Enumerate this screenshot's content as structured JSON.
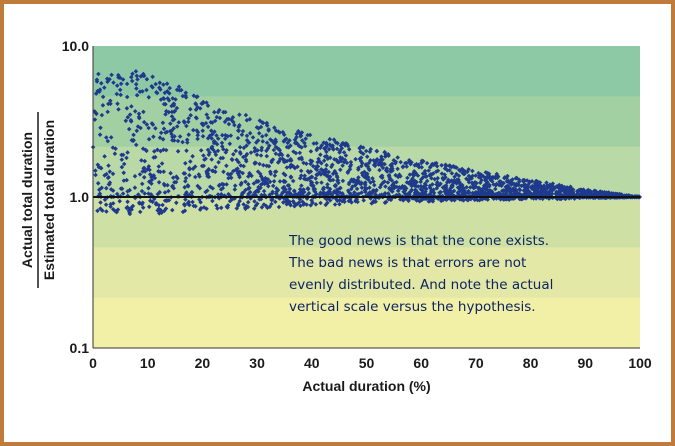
{
  "chart_data": {
    "type": "scatter",
    "title": "",
    "xlabel": "Actual duration (%)",
    "ylabel_numerator": "Actual total duration",
    "ylabel_denominator": "Estimated total duration",
    "xlim": [
      0,
      100
    ],
    "ylim": [
      0.1,
      10
    ],
    "y_scale": "log",
    "x_ticks": [
      "0",
      "10",
      "20",
      "30",
      "40",
      "50",
      "60",
      "70",
      "80",
      "90",
      "100"
    ],
    "y_ticks": [
      "0.1",
      "1.0",
      "10.0"
    ],
    "reference_line_y": 1.0,
    "background_bands": [
      "#8ec9a6",
      "#a3d0a3",
      "#b9d9a6",
      "#cfe0a4",
      "#e3e8a6",
      "#f2f0a6"
    ],
    "point_color": "#1f3a8c",
    "upper_envelope": [
      [
        0,
        4.6
      ],
      [
        1,
        6.8
      ],
      [
        5,
        7.0
      ],
      [
        8,
        6.8
      ],
      [
        15,
        5.5
      ],
      [
        18,
        5.2
      ],
      [
        22,
        4.0
      ],
      [
        28,
        3.5
      ],
      [
        33,
        3.0
      ],
      [
        40,
        2.6
      ],
      [
        50,
        2.1
      ],
      [
        60,
        1.75
      ],
      [
        70,
        1.5
      ],
      [
        80,
        1.3
      ],
      [
        90,
        1.12
      ],
      [
        100,
        1.0
      ]
    ],
    "lower_envelope": [
      [
        0,
        0.7
      ],
      [
        10,
        0.76
      ],
      [
        20,
        0.8
      ],
      [
        30,
        0.84
      ],
      [
        40,
        0.88
      ],
      [
        50,
        0.9
      ],
      [
        60,
        0.93
      ],
      [
        70,
        0.95
      ],
      [
        80,
        0.96
      ],
      [
        90,
        0.98
      ],
      [
        100,
        1.0
      ]
    ],
    "annotation": [
      "The good news is that the cone exists.",
      "The bad news is that errors are not",
      "evenly distributed. And note the actual",
      "vertical scale versus the hypothesis."
    ]
  }
}
